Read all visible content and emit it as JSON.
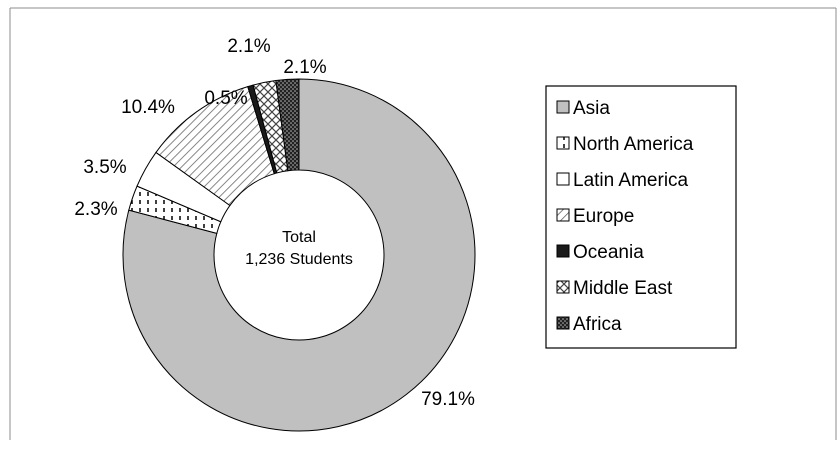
{
  "chart_data": {
    "type": "pie",
    "variant": "donut",
    "center_label": [
      "Total",
      "1,236 Students"
    ],
    "legend_position": "right",
    "slices": [
      {
        "label": "Asia",
        "value": 79.1,
        "display": "79.1%",
        "pattern": "solid-gray"
      },
      {
        "label": "North America",
        "value": 2.3,
        "display": "2.3%",
        "pattern": "vertical-dashes"
      },
      {
        "label": "Latin America",
        "value": 3.5,
        "display": "3.5%",
        "pattern": "white"
      },
      {
        "label": "Europe",
        "value": 10.4,
        "display": "10.4%",
        "pattern": "diagonal"
      },
      {
        "label": "Oceania",
        "value": 0.5,
        "display": "0.5%",
        "pattern": "solid-black"
      },
      {
        "label": "Middle East",
        "value": 2.1,
        "display": "2.1%",
        "pattern": "crosshatch"
      },
      {
        "label": "Africa",
        "value": 2.1,
        "display": "2.1%",
        "pattern": "dark-dots"
      }
    ]
  }
}
